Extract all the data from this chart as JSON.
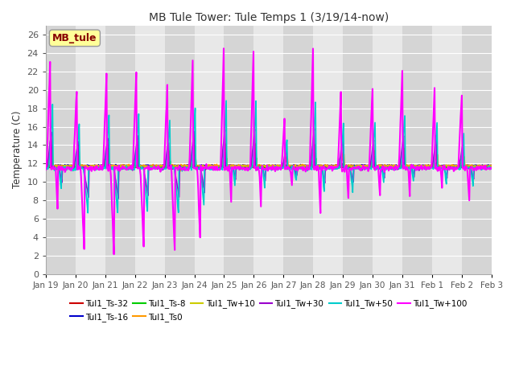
{
  "title": "MB Tule Tower: Tule Temps 1 (3/19/14-now)",
  "ylabel": "Temperature (C)",
  "ylim": [
    0,
    27
  ],
  "yticks": [
    0,
    2,
    4,
    6,
    8,
    10,
    12,
    14,
    16,
    18,
    20,
    22,
    24,
    26
  ],
  "xlabel_ticks": [
    "Jan 19",
    "Jan 20",
    "Jan 21",
    "Jan 22",
    "Jan 23",
    "Jan 24",
    "Jan 25",
    "Jan 26",
    "Jan 27",
    "Jan 28",
    "Jan 29",
    "Jan 30",
    "Jan 31",
    "Feb 1",
    "Feb 2",
    "Feb 3"
  ],
  "background_color": "#ffffff",
  "plot_bg_light": "#eeeeee",
  "plot_bg_dark": "#dddddd",
  "legend_box_color": "#ffff99",
  "legend_box_text": "MB_tule",
  "series": [
    {
      "label": "Tul1_Ts-32",
      "color": "#cc0000",
      "lw": 1.0
    },
    {
      "label": "Tul1_Ts-16",
      "color": "#0000cc",
      "lw": 1.0
    },
    {
      "label": "Tul1_Ts-8",
      "color": "#00cc00",
      "lw": 1.0
    },
    {
      "label": "Tul1_Ts0",
      "color": "#ff9900",
      "lw": 1.0
    },
    {
      "label": "Tul1_Tw+10",
      "color": "#cccc00",
      "lw": 1.0
    },
    {
      "label": "Tul1_Tw+30",
      "color": "#9900cc",
      "lw": 1.2
    },
    {
      "label": "Tul1_Tw+50",
      "color": "#00cccc",
      "lw": 1.2
    },
    {
      "label": "Tul1_Tw+100",
      "color": "#ff00ff",
      "lw": 1.5
    }
  ],
  "spike_peaks": [
    0.15,
    1.05,
    2.05,
    3.05,
    4.1,
    4.95,
    6.0,
    7.0,
    8.05,
    9.0,
    9.95,
    11.0,
    12.0,
    13.1,
    14.0
  ],
  "spike_heights_mag": [
    23.5,
    20.5,
    22.2,
    22.2,
    21.5,
    23.8,
    25.8,
    25.5,
    17.8,
    25.2,
    21.5,
    20.7,
    22.3,
    22.0,
    19.7
  ],
  "spike_troughs_mag": [
    6.8,
    2.2,
    1.8,
    2.5,
    1.8,
    3.5,
    6.8,
    6.5,
    9.0,
    6.0,
    6.8,
    8.2,
    8.5,
    8.2,
    8.0
  ],
  "base_temp": 11.5
}
